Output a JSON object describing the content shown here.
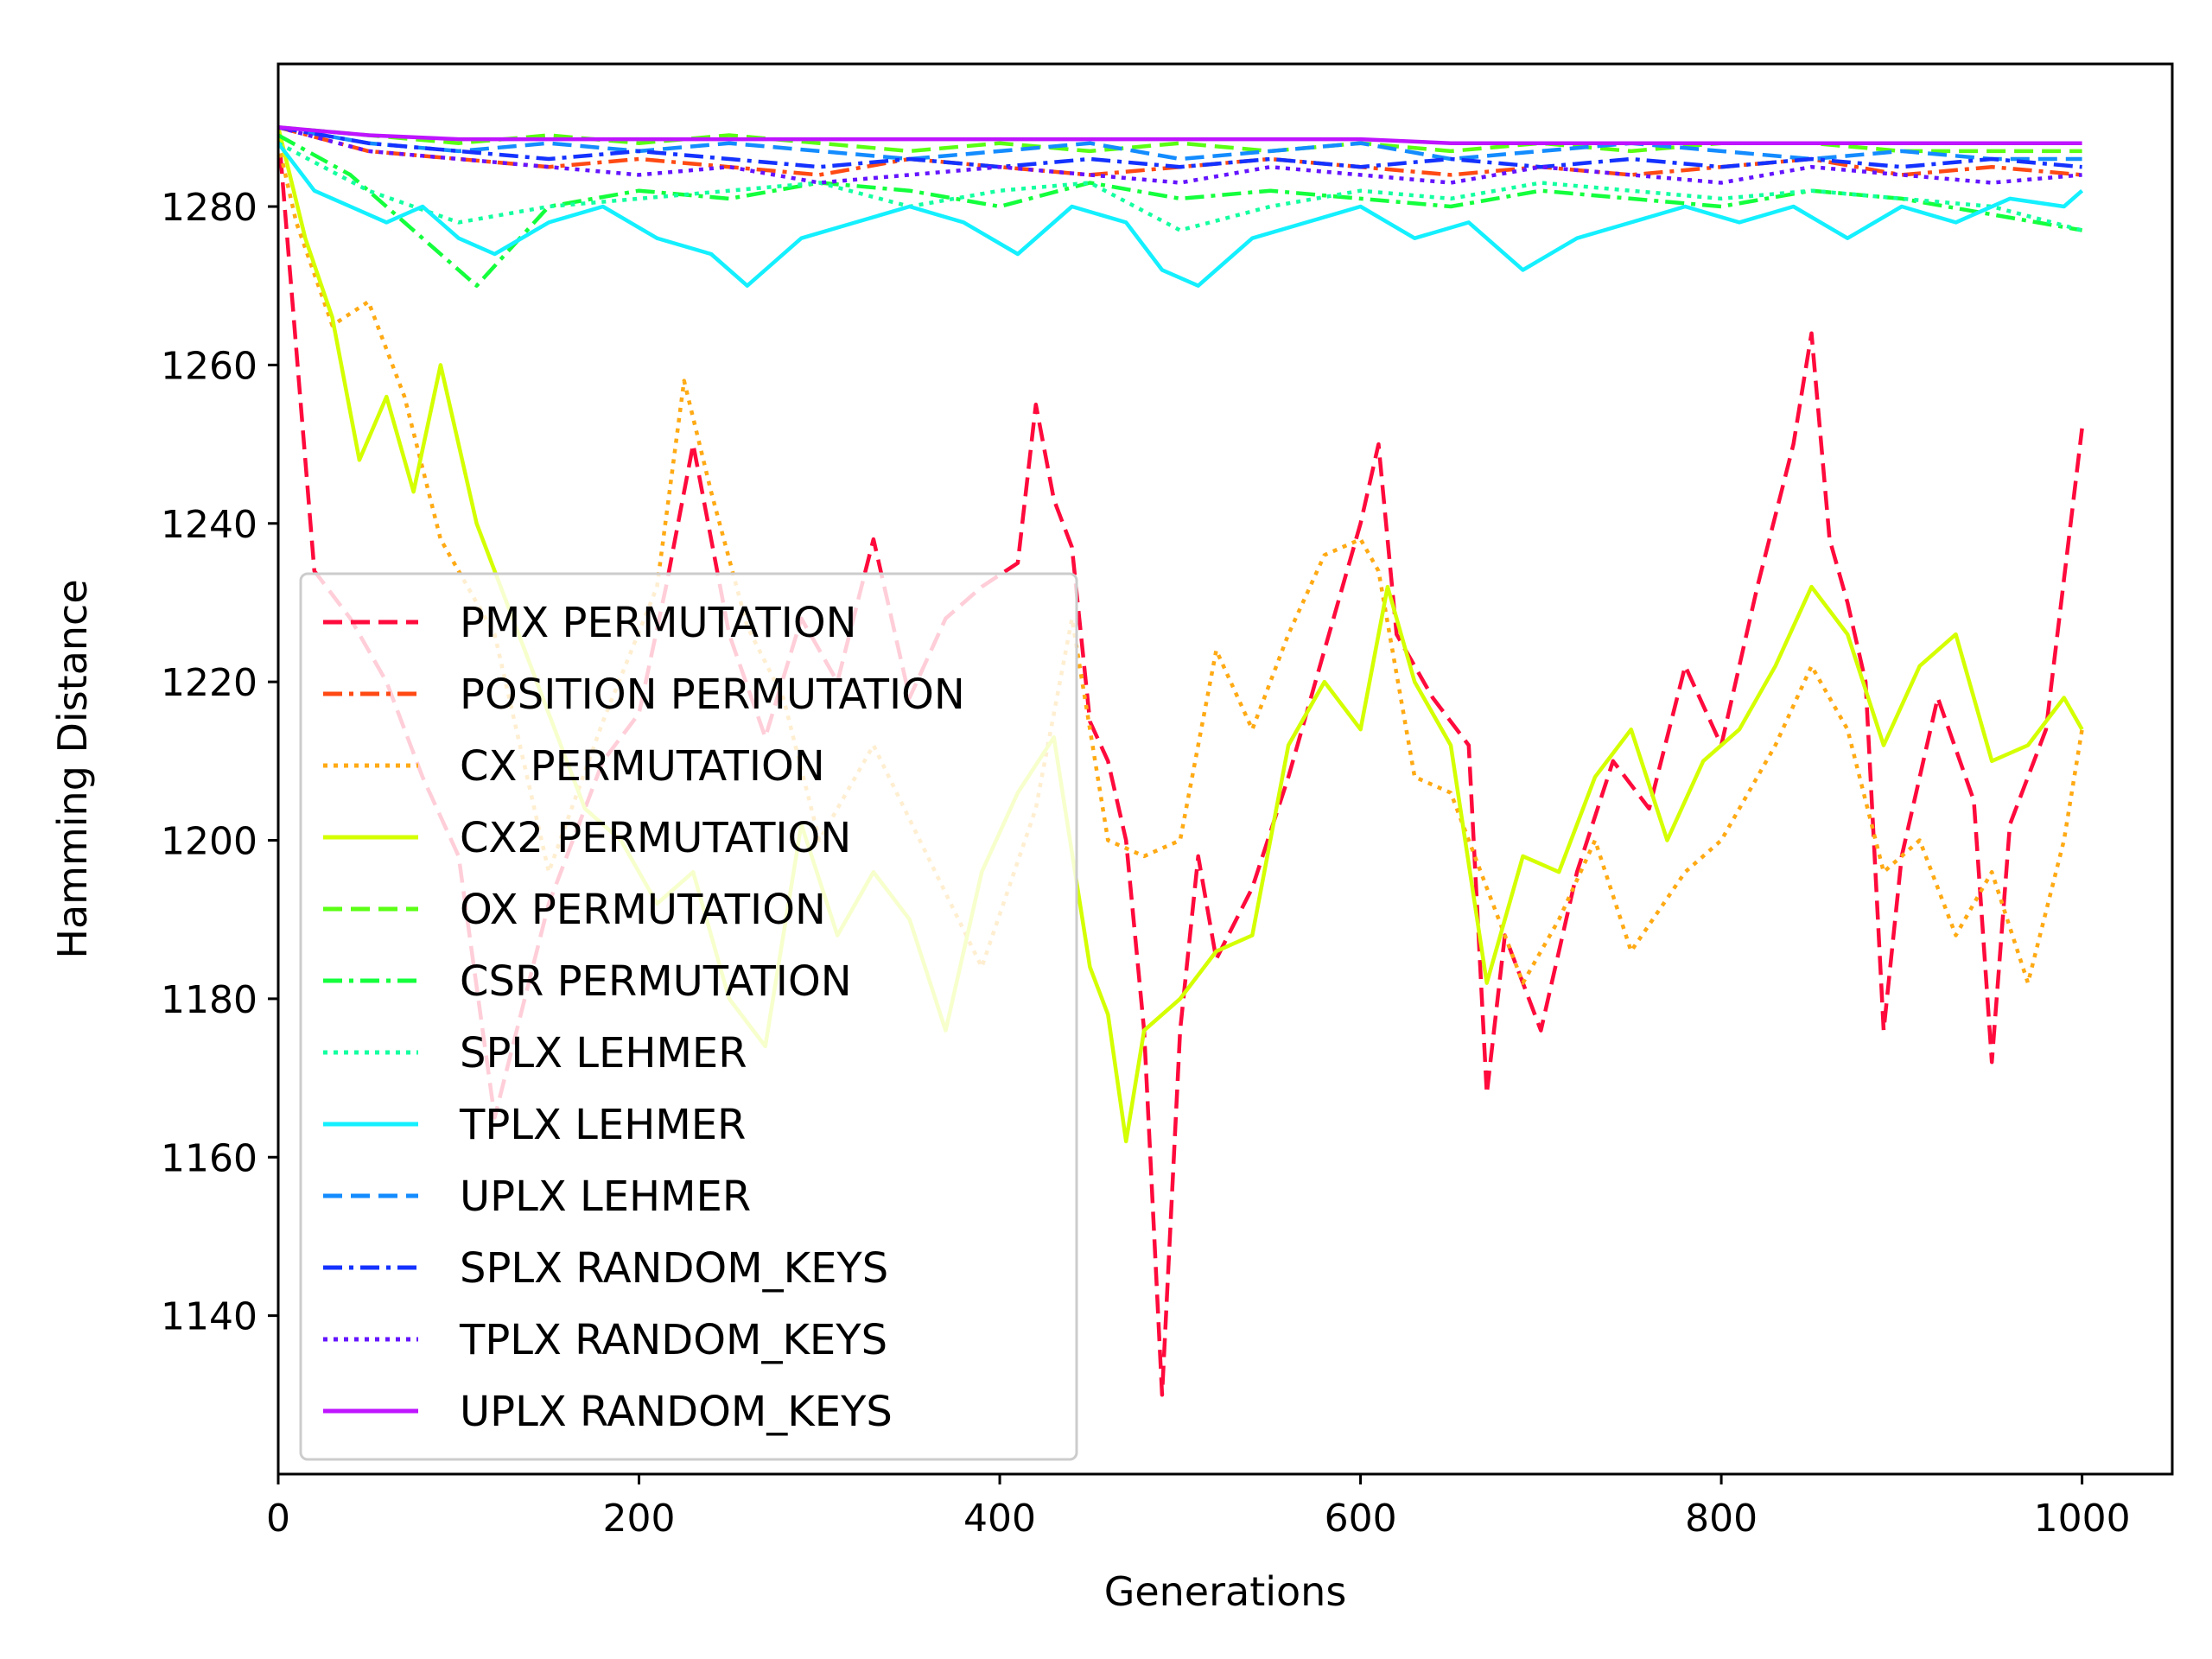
{
  "chart_data": {
    "type": "line",
    "title": "",
    "xlabel": "Generations",
    "ylabel": "Hamming Distance",
    "xlim": [
      0,
      1050
    ],
    "ylim": [
      1120,
      1298
    ],
    "xticks": [
      0,
      200,
      400,
      600,
      800,
      1000
    ],
    "yticks": [
      1140,
      1160,
      1180,
      1200,
      1220,
      1240,
      1260,
      1280
    ],
    "grid": false,
    "legend_position": "lower-left",
    "series": [
      {
        "name": "PMX PERMUTATION",
        "color": "#ff0a3c",
        "dash": "dashed",
        "x": [
          0,
          10,
          20,
          40,
          60,
          80,
          100,
          120,
          150,
          180,
          200,
          215,
          230,
          250,
          270,
          290,
          310,
          330,
          350,
          370,
          390,
          410,
          420,
          430,
          440,
          450,
          460,
          470,
          480,
          490,
          500,
          510,
          520,
          540,
          560,
          580,
          600,
          610,
          620,
          640,
          660,
          670,
          680,
          700,
          720,
          740,
          760,
          780,
          800,
          820,
          840,
          850,
          860,
          870,
          880,
          890,
          900,
          920,
          940,
          950,
          960,
          980,
          1000
        ],
        "y": [
          1290,
          1262,
          1234,
          1228,
          1220,
          1208,
          1198,
          1165,
          1192,
          1210,
          1216,
          1232,
          1250,
          1226,
          1213,
          1228,
          1220,
          1238,
          1218,
          1228,
          1232,
          1235,
          1255,
          1243,
          1237,
          1215,
          1210,
          1200,
          1176,
          1130,
          1176,
          1198,
          1185,
          1194,
          1208,
          1224,
          1240,
          1250,
          1226,
          1218,
          1212,
          1168,
          1188,
          1176,
          1196,
          1210,
          1204,
          1222,
          1212,
          1232,
          1250,
          1264,
          1238,
          1230,
          1220,
          1176,
          1198,
          1218,
          1205,
          1172,
          1202,
          1214,
          1252
        ]
      },
      {
        "name": "POSITION PERMUTATION",
        "color": "#ff4a14",
        "dash": "dashdot",
        "x": [
          0,
          50,
          100,
          150,
          200,
          250,
          300,
          350,
          400,
          450,
          500,
          550,
          600,
          650,
          700,
          750,
          800,
          850,
          900,
          950,
          1000
        ],
        "y": [
          1290,
          1287,
          1286,
          1285,
          1286,
          1285,
          1284,
          1286,
          1285,
          1284,
          1285,
          1286,
          1285,
          1284,
          1285,
          1284,
          1285,
          1286,
          1284,
          1285,
          1284
        ]
      },
      {
        "name": "CX PERMUTATION",
        "color": "#ffaa14",
        "dash": "dotted",
        "x": [
          0,
          10,
          30,
          50,
          70,
          90,
          120,
          150,
          180,
          210,
          225,
          240,
          260,
          280,
          300,
          330,
          360,
          390,
          420,
          440,
          460,
          480,
          500,
          520,
          540,
          560,
          580,
          600,
          610,
          630,
          650,
          670,
          690,
          710,
          730,
          750,
          780,
          800,
          830,
          850,
          870,
          890,
          910,
          930,
          950,
          970,
          990,
          1000
        ],
        "y": [
          1288,
          1278,
          1265,
          1268,
          1256,
          1238,
          1226,
          1196,
          1215,
          1232,
          1258,
          1244,
          1227,
          1218,
          1200,
          1212,
          1198,
          1184,
          1204,
          1228,
          1200,
          1198,
          1200,
          1224,
          1214,
          1226,
          1236,
          1238,
          1234,
          1208,
          1206,
          1194,
          1182,
          1190,
          1200,
          1186,
          1196,
          1200,
          1212,
          1222,
          1214,
          1196,
          1200,
          1188,
          1196,
          1182,
          1200,
          1214
        ]
      },
      {
        "name": "CX2 PERMUTATION",
        "color": "#d4ff00",
        "dash": "solid",
        "x": [
          0,
          15,
          30,
          45,
          60,
          75,
          90,
          110,
          130,
          150,
          170,
          190,
          210,
          230,
          250,
          270,
          290,
          310,
          330,
          350,
          370,
          390,
          410,
          430,
          450,
          460,
          470,
          480,
          500,
          520,
          540,
          560,
          580,
          600,
          615,
          630,
          650,
          670,
          690,
          710,
          730,
          750,
          770,
          790,
          810,
          830,
          850,
          870,
          890,
          910,
          930,
          950,
          970,
          990,
          1000
        ],
        "y": [
          1290,
          1276,
          1266,
          1248,
          1256,
          1244,
          1260,
          1240,
          1228,
          1216,
          1204,
          1200,
          1192,
          1196,
          1180,
          1174,
          1202,
          1188,
          1196,
          1190,
          1176,
          1196,
          1206,
          1213,
          1184,
          1178,
          1162,
          1176,
          1180,
          1186,
          1188,
          1212,
          1220,
          1214,
          1232,
          1220,
          1212,
          1182,
          1198,
          1196,
          1208,
          1214,
          1200,
          1210,
          1214,
          1222,
          1232,
          1226,
          1212,
          1222,
          1226,
          1210,
          1212,
          1218,
          1214
        ]
      },
      {
        "name": "OX PERMUTATION",
        "color": "#5aff14",
        "dash": "dashed",
        "x": [
          0,
          50,
          100,
          150,
          200,
          250,
          300,
          350,
          400,
          450,
          500,
          550,
          600,
          650,
          700,
          750,
          800,
          850,
          900,
          950,
          1000
        ],
        "y": [
          1290,
          1289,
          1288,
          1289,
          1288,
          1289,
          1288,
          1287,
          1288,
          1287,
          1288,
          1287,
          1288,
          1287,
          1288,
          1287,
          1288,
          1288,
          1287,
          1287,
          1287
        ]
      },
      {
        "name": "CSR PERMUTATION",
        "color": "#14ff3c",
        "dash": "dashdot",
        "x": [
          0,
          40,
          80,
          110,
          150,
          200,
          250,
          300,
          350,
          400,
          450,
          500,
          550,
          600,
          650,
          700,
          750,
          800,
          850,
          900,
          950,
          1000
        ],
        "y": [
          1289,
          1284,
          1276,
          1270,
          1280,
          1282,
          1281,
          1283,
          1282,
          1280,
          1283,
          1281,
          1282,
          1281,
          1280,
          1282,
          1281,
          1280,
          1282,
          1281,
          1279,
          1277
        ]
      },
      {
        "name": "SPLX LEHMER",
        "color": "#14ffa0",
        "dash": "dotted",
        "x": [
          0,
          50,
          100,
          150,
          200,
          250,
          300,
          350,
          400,
          450,
          500,
          550,
          600,
          650,
          700,
          750,
          800,
          850,
          900,
          950,
          1000
        ],
        "y": [
          1288,
          1282,
          1278,
          1280,
          1281,
          1282,
          1283,
          1280,
          1282,
          1283,
          1277,
          1280,
          1282,
          1281,
          1283,
          1282,
          1281,
          1282,
          1281,
          1280,
          1277
        ]
      },
      {
        "name": "TPLX LEHMER",
        "color": "#14f0ff",
        "dash": "solid",
        "x": [
          0,
          20,
          40,
          60,
          80,
          100,
          120,
          150,
          180,
          210,
          240,
          260,
          290,
          320,
          350,
          380,
          410,
          440,
          470,
          490,
          510,
          540,
          570,
          600,
          630,
          660,
          690,
          720,
          750,
          780,
          810,
          840,
          870,
          900,
          930,
          960,
          990,
          1000
        ],
        "y": [
          1288,
          1282,
          1280,
          1278,
          1280,
          1276,
          1274,
          1278,
          1280,
          1276,
          1274,
          1270,
          1276,
          1278,
          1280,
          1278,
          1274,
          1280,
          1278,
          1272,
          1270,
          1276,
          1278,
          1280,
          1276,
          1278,
          1272,
          1276,
          1278,
          1280,
          1278,
          1280,
          1276,
          1280,
          1278,
          1281,
          1280,
          1282
        ]
      },
      {
        "name": "UPLX LEHMER",
        "color": "#148cff",
        "dash": "dashed",
        "x": [
          0,
          50,
          100,
          150,
          200,
          250,
          300,
          350,
          400,
          450,
          500,
          550,
          600,
          650,
          700,
          750,
          800,
          850,
          900,
          950,
          1000
        ],
        "y": [
          1290,
          1288,
          1287,
          1288,
          1287,
          1288,
          1287,
          1286,
          1287,
          1288,
          1286,
          1287,
          1288,
          1286,
          1287,
          1288,
          1287,
          1286,
          1287,
          1286,
          1286
        ]
      },
      {
        "name": "SPLX RANDOM_KEYS",
        "color": "#1432ff",
        "dash": "dashdot",
        "x": [
          0,
          50,
          100,
          150,
          200,
          250,
          300,
          350,
          400,
          450,
          500,
          550,
          600,
          650,
          700,
          750,
          800,
          850,
          900,
          950,
          1000
        ],
        "y": [
          1290,
          1288,
          1287,
          1286,
          1287,
          1286,
          1285,
          1286,
          1285,
          1286,
          1285,
          1286,
          1285,
          1286,
          1285,
          1286,
          1285,
          1286,
          1285,
          1286,
          1285
        ]
      },
      {
        "name": "TPLX RANDOM_KEYS",
        "color": "#6414ff",
        "dash": "dotted",
        "x": [
          0,
          50,
          100,
          150,
          200,
          250,
          300,
          350,
          400,
          450,
          500,
          550,
          600,
          650,
          700,
          750,
          800,
          850,
          900,
          950,
          1000
        ],
        "y": [
          1290,
          1287,
          1286,
          1285,
          1284,
          1285,
          1283,
          1284,
          1285,
          1284,
          1283,
          1285,
          1284,
          1283,
          1285,
          1284,
          1283,
          1285,
          1284,
          1283,
          1284
        ]
      },
      {
        "name": "UPLX RANDOM_KEYS",
        "color": "#be14ff",
        "dash": "solid",
        "x": [
          0,
          50,
          100,
          150,
          200,
          250,
          300,
          350,
          400,
          450,
          500,
          550,
          600,
          650,
          700,
          750,
          800,
          850,
          900,
          950,
          1000
        ],
        "y": [
          1290,
          1289,
          1288.5,
          1288.5,
          1288.5,
          1288.5,
          1288.5,
          1288.5,
          1288.5,
          1288.5,
          1288.5,
          1288.5,
          1288.5,
          1288,
          1288,
          1288,
          1288,
          1288,
          1288,
          1288,
          1288
        ]
      }
    ]
  }
}
